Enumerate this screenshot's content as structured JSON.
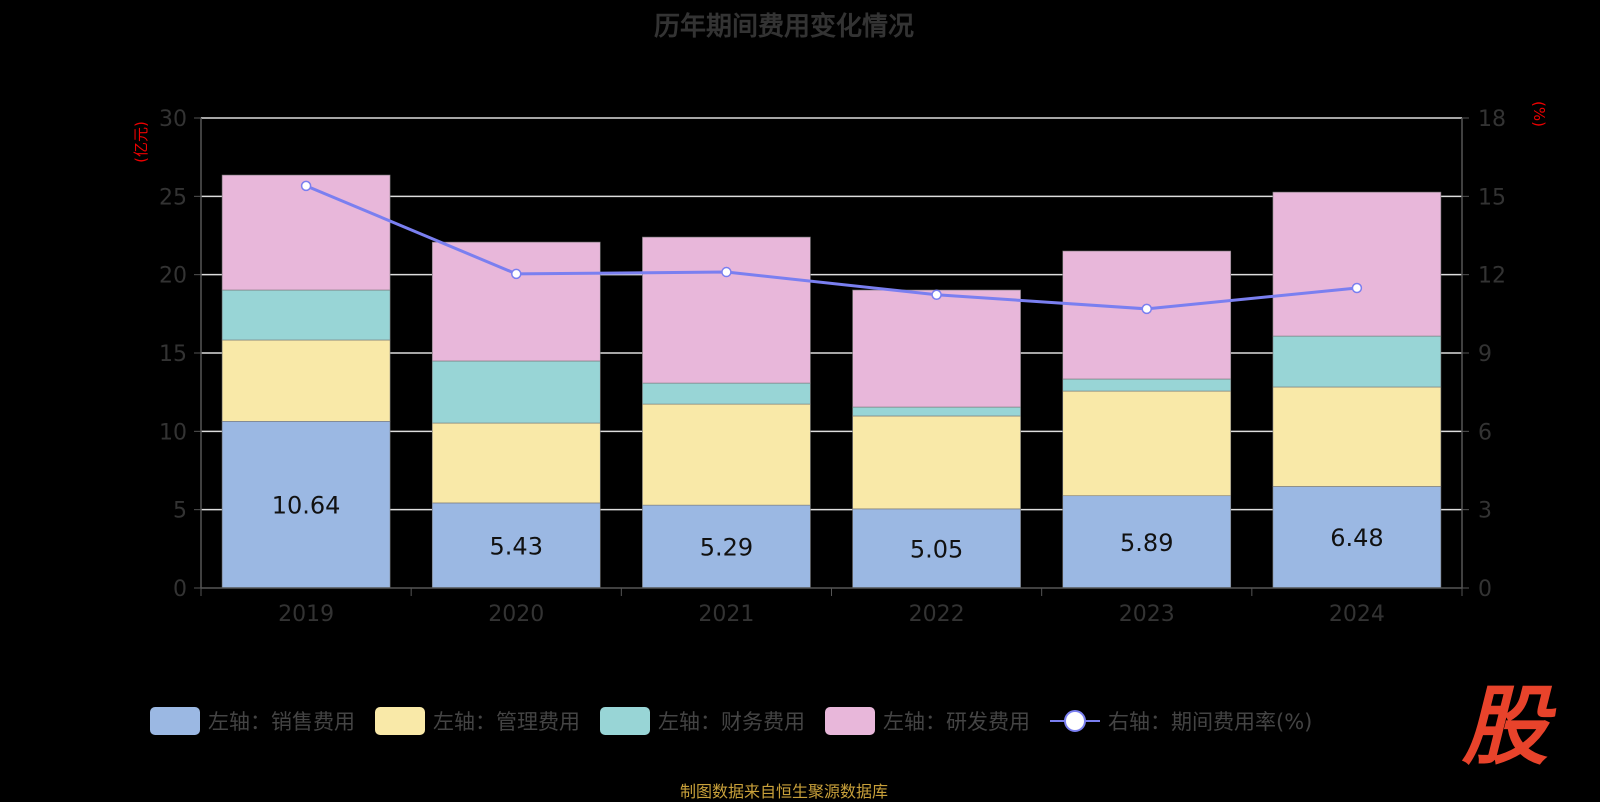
{
  "title": "历年期间费用变化情况",
  "source": "制图数据来自恒生聚源数据库",
  "logo_text": "股",
  "colors": {
    "sales": "#9bb8e3",
    "mgmt": "#f9e9a8",
    "fin": "#98d5d6",
    "rd": "#e8b7da",
    "line": "#7a7ff0"
  },
  "legend": [
    "左轴：销售费用",
    "左轴：管理费用",
    "左轴：财务费用",
    "左轴：研发费用",
    "右轴：期间费用率(%)"
  ],
  "chart_data": {
    "type": "bar",
    "title": "历年期间费用变化情况",
    "categories": [
      "2019",
      "2020",
      "2021",
      "2022",
      "2023",
      "2024"
    ],
    "ylabel": "(亿元)",
    "y2label": "(%)",
    "ylim": [
      0,
      30
    ],
    "y2lim": [
      0,
      18
    ],
    "yticks": [
      "0",
      "5",
      "10",
      "15",
      "20",
      "25",
      "30"
    ],
    "y2ticks": [
      "0",
      "3",
      "6",
      "9",
      "12",
      "15",
      "18"
    ],
    "series": [
      {
        "name": "左轴：销售费用",
        "stack": "total",
        "values": [
          10.64,
          5.43,
          5.29,
          5.05,
          5.89,
          6.48
        ],
        "labels": [
          "10.64",
          "5.43",
          "5.29",
          "5.05",
          "5.89",
          "6.48"
        ]
      },
      {
        "name": "左轴：管理费用",
        "stack": "total",
        "values": [
          5.19,
          5.1,
          6.45,
          5.93,
          6.68,
          6.35
        ]
      },
      {
        "name": "左轴：财务费用",
        "stack": "total",
        "values": [
          3.19,
          3.96,
          1.34,
          0.57,
          0.77,
          3.25
        ]
      },
      {
        "name": "左轴：研发费用",
        "stack": "total",
        "values": [
          7.34,
          7.59,
          9.32,
          7.47,
          8.17,
          9.19
        ]
      },
      {
        "name": "右轴：期间费用率(%)",
        "type": "line",
        "axis": "right",
        "values": [
          15.4,
          12.03,
          12.1,
          11.23,
          10.69,
          11.49
        ]
      }
    ],
    "grid": true,
    "legend_position": "bottom"
  }
}
